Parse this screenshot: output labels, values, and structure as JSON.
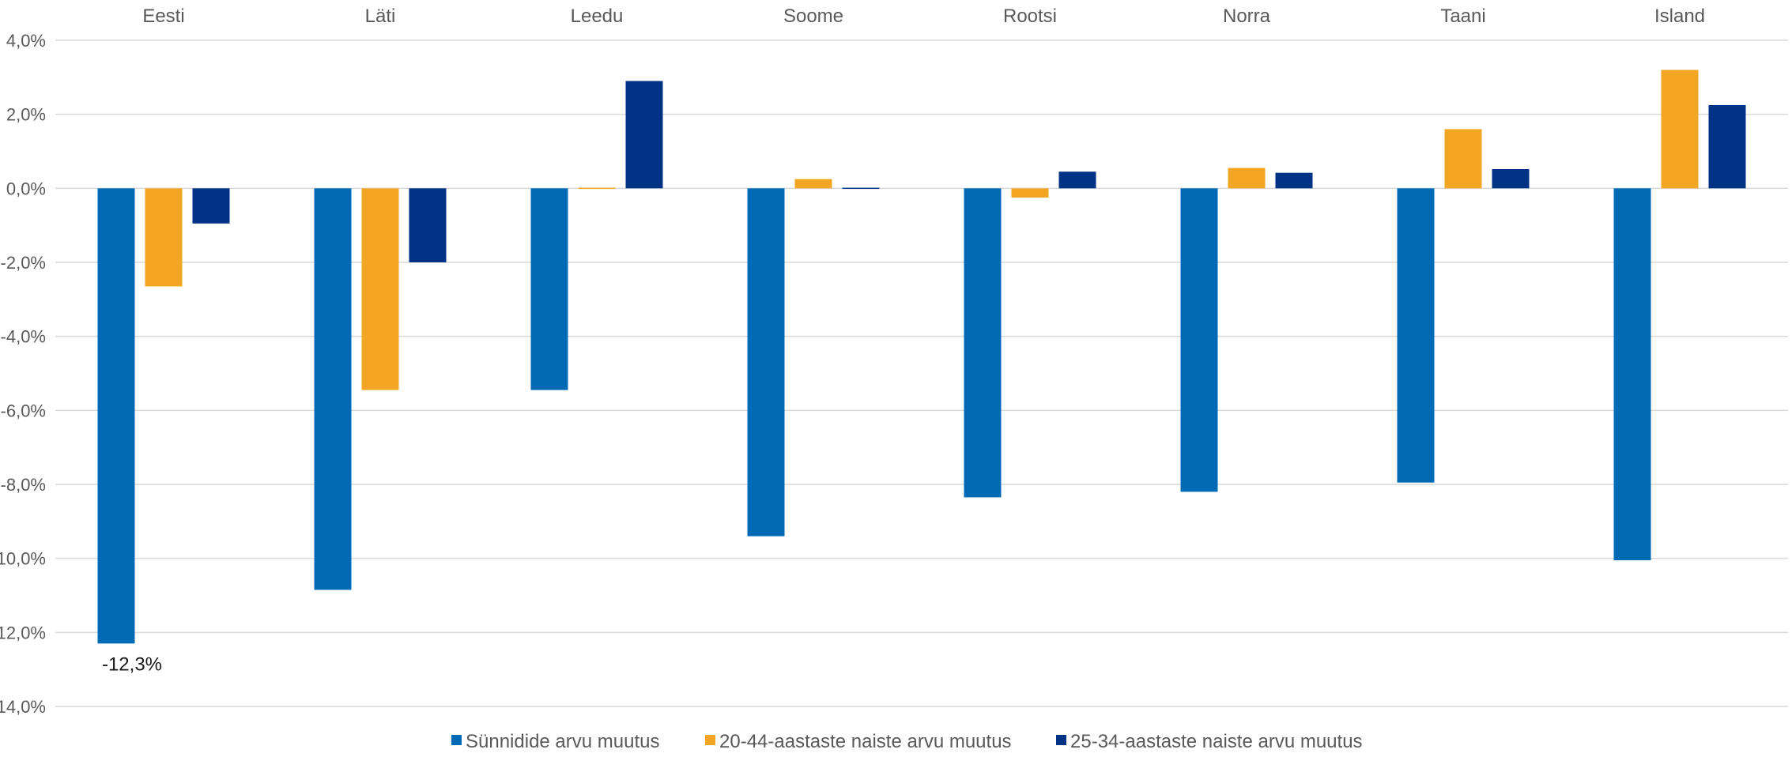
{
  "chart_data": {
    "type": "bar",
    "categories": [
      "Eesti",
      "Läti",
      "Leedu",
      "Soome",
      "Rootsi",
      "Norra",
      "Taani",
      "Island"
    ],
    "series": [
      {
        "name": "Sünnidide arvu muutus",
        "color": "#006ab4",
        "values": [
          -12.3,
          -10.85,
          -5.45,
          -9.4,
          -8.35,
          -8.2,
          -7.95,
          -10.05
        ]
      },
      {
        "name": "20-44-aastaste naiste arvu muutus",
        "color": "#f2a623",
        "values": [
          -2.65,
          -5.45,
          0.0,
          0.25,
          -0.25,
          0.55,
          1.6,
          3.2
        ]
      },
      {
        "name": "25-34-aastaste naiste arvu muutus",
        "color": "#003286",
        "values": [
          -0.95,
          -2.0,
          2.9,
          0.0,
          0.45,
          0.42,
          0.52,
          2.25
        ]
      }
    ],
    "y_ticks": [
      "4,0%",
      "2,0%",
      "0,0%",
      "-2,0%",
      "-4,0%",
      "-6,0%",
      "-8,0%",
      "-10,0%",
      "-12,0%",
      "-14,0%"
    ],
    "ylim": [
      -14,
      4
    ],
    "data_labels": [
      {
        "category": "Eesti",
        "series": "Sünnidide arvu muutus",
        "text": "-12,3%"
      }
    ],
    "grid": true,
    "legend_position": "bottom",
    "category_labels_position": "top"
  }
}
